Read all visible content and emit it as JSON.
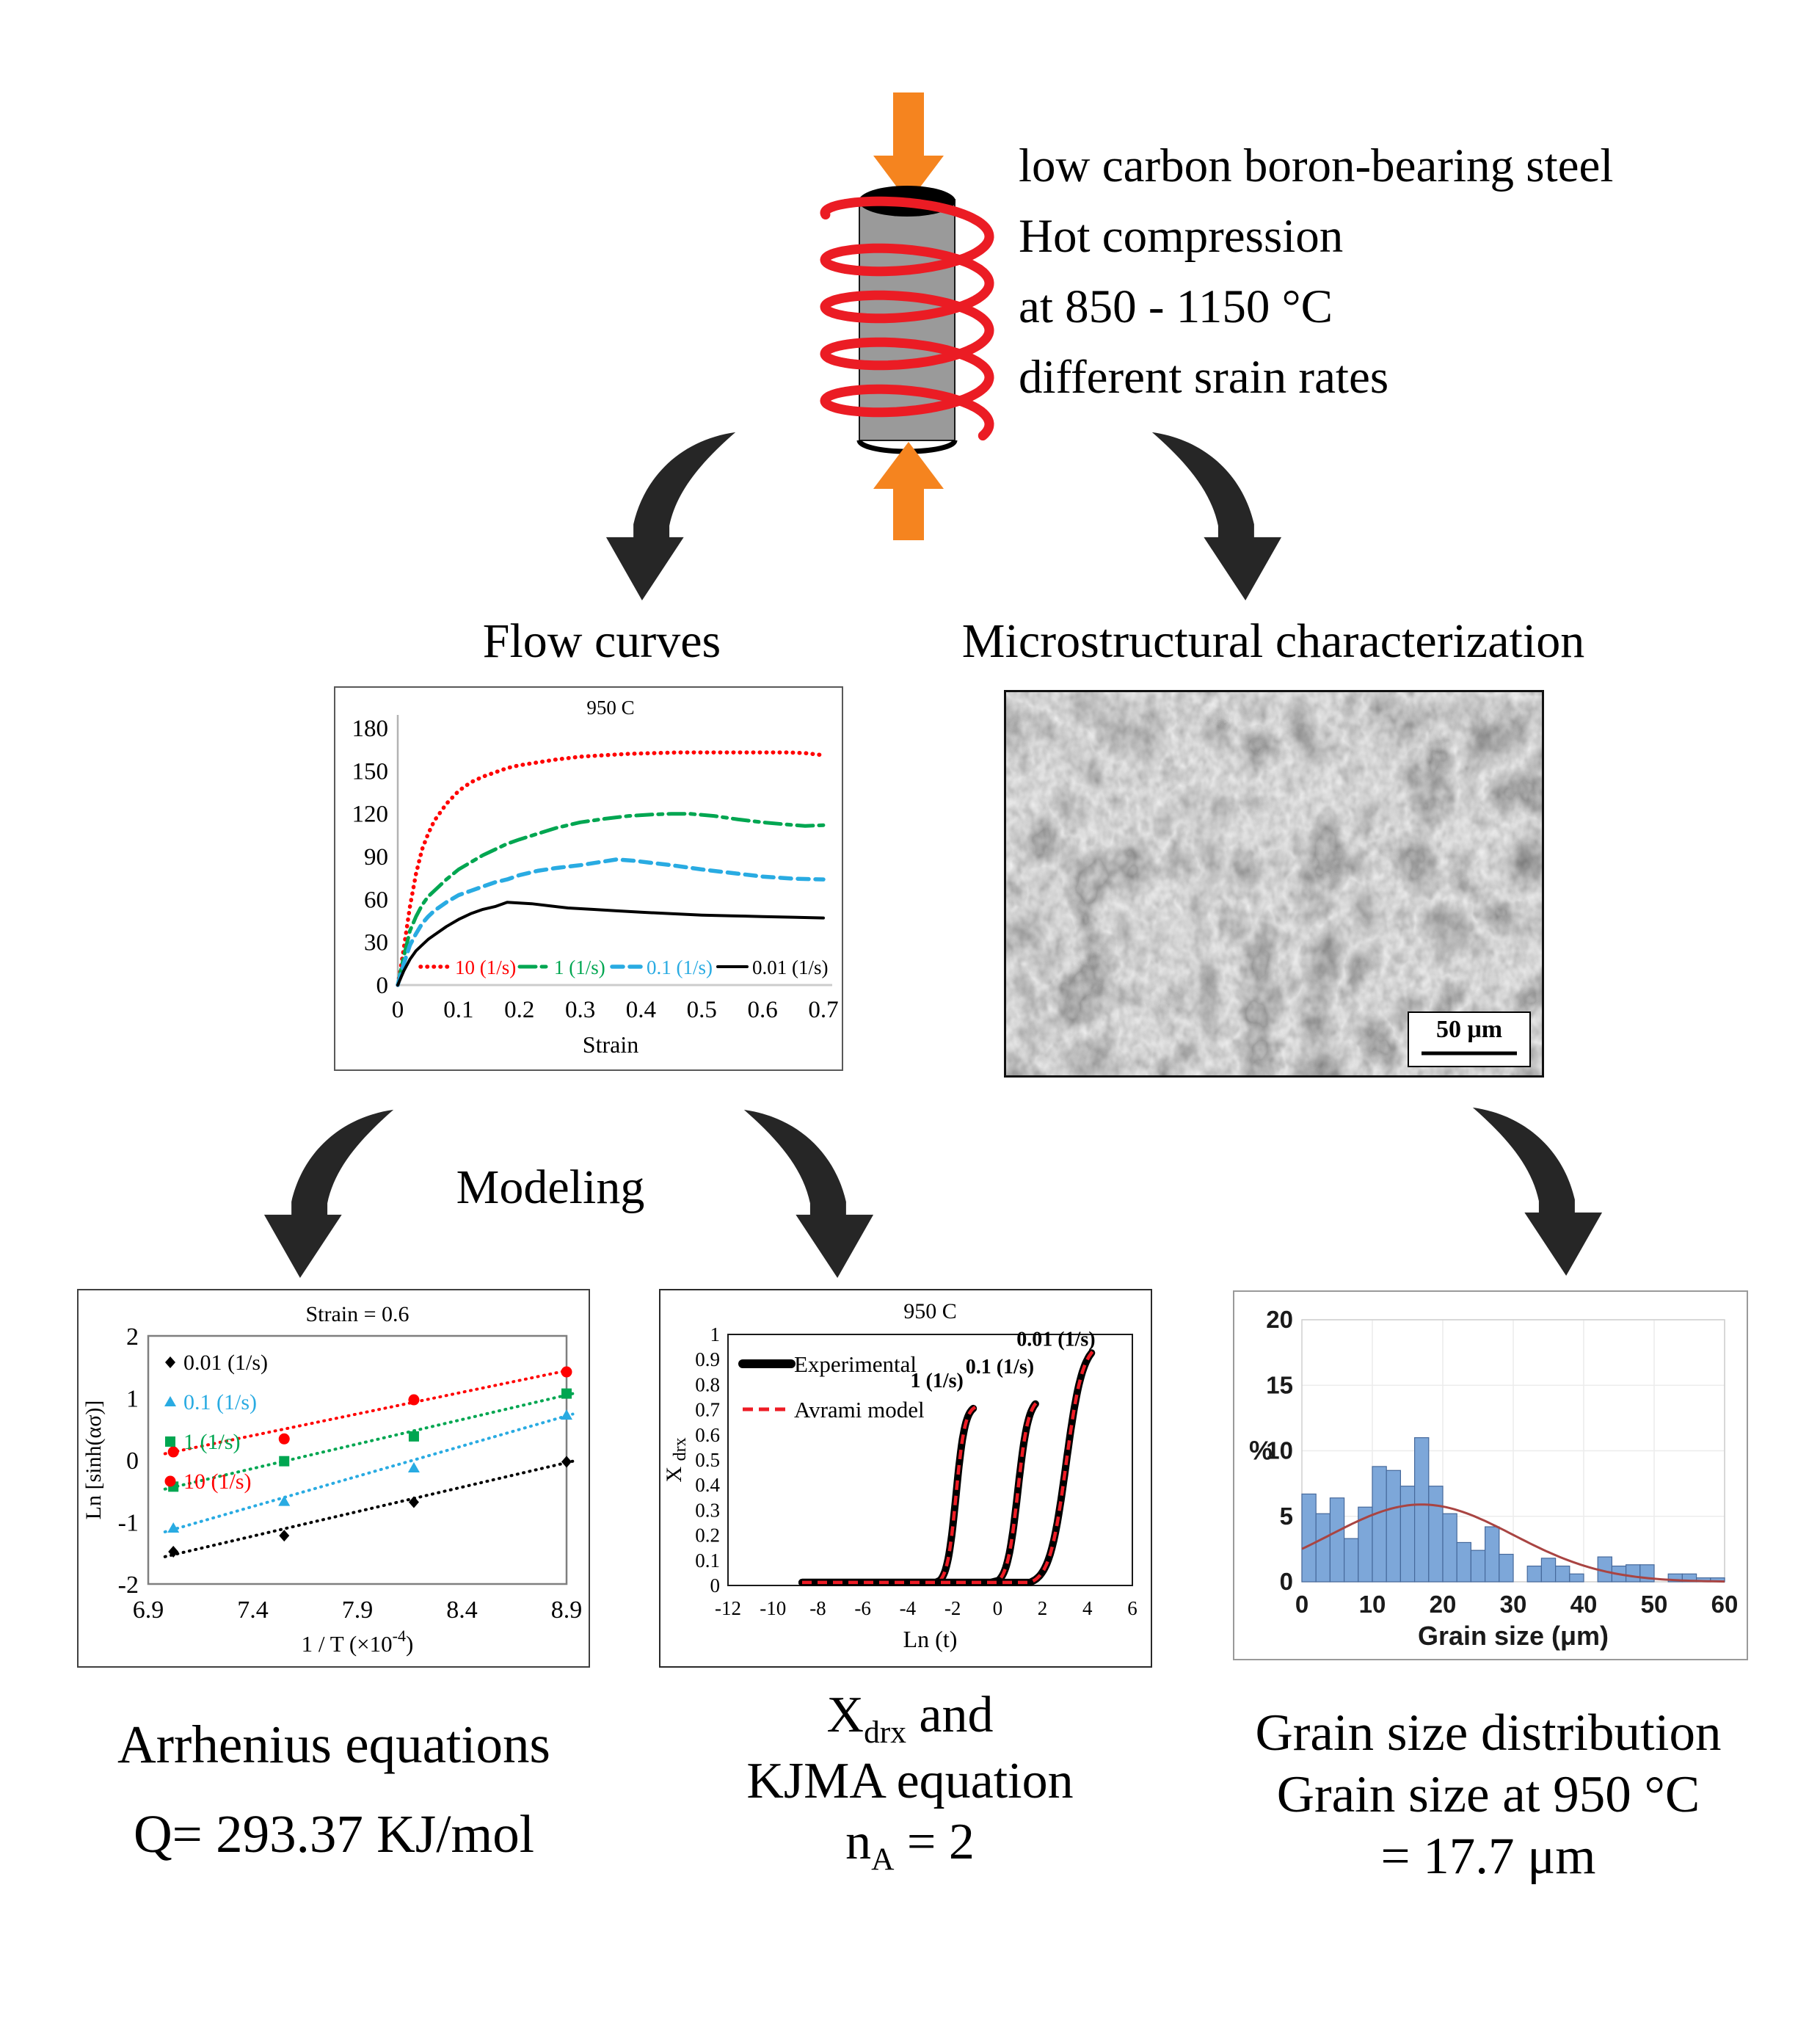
{
  "title_block": {
    "line1": "low carbon boron-bearing steel",
    "line2": "Hot compression",
    "line3": "at 850 - 1150 °C",
    "line4": "different srain rates"
  },
  "section_labels": {
    "flow_curves": "Flow curves",
    "microstructure": "Microstructural characterization",
    "modeling": "Modeling"
  },
  "micrograph": {
    "scale_bar_label": "50 μm"
  },
  "captions": {
    "left": {
      "line1": "Arrhenius equations",
      "line2": "Q= 293.37 KJ/mol"
    },
    "middle": {
      "x": "X",
      "x_sub": "drx",
      "and": " and",
      "line2": "KJMA equation",
      "n": "n",
      "n_sub": "A",
      "eq": " = 2"
    },
    "right": {
      "line1": "Grain size distribution",
      "line2": "Grain size at 950 °C",
      "line3": "= 17.7 μm"
    }
  },
  "colors": {
    "orange": "#F5841F",
    "coil_red": "#EB1C24",
    "arrow_dark": "#262626",
    "steel_gray": "#9A9A9A"
  },
  "chart_data": [
    {
      "id": "flow",
      "type": "line",
      "title": "950 C",
      "xlabel": "Strain",
      "xlim": [
        0,
        0.7
      ],
      "ylim": [
        0,
        180
      ],
      "xticks": [
        "0",
        "0.1",
        "0.2",
        "0.3",
        "0.4",
        "0.5",
        "0.6",
        "0.7"
      ],
      "yticks": [
        "0",
        "30",
        "60",
        "90",
        "120",
        "150",
        "180"
      ],
      "legend_position": "bottom-inside",
      "series": [
        {
          "name": "10 (1/s)",
          "color": "#FF0000",
          "dash": "dot",
          "points": [
            [
              0,
              0
            ],
            [
              0.005,
              12
            ],
            [
              0.01,
              26
            ],
            [
              0.02,
              55
            ],
            [
              0.03,
              78
            ],
            [
              0.04,
              95
            ],
            [
              0.05,
              106
            ],
            [
              0.06,
              115
            ],
            [
              0.08,
              127
            ],
            [
              0.1,
              136
            ],
            [
              0.12,
              142
            ],
            [
              0.14,
              146
            ],
            [
              0.16,
              149
            ],
            [
              0.18,
              152
            ],
            [
              0.2,
              154
            ],
            [
              0.23,
              156
            ],
            [
              0.26,
              158
            ],
            [
              0.3,
              160
            ],
            [
              0.34,
              161
            ],
            [
              0.38,
              162
            ],
            [
              0.42,
              162.5
            ],
            [
              0.46,
              163
            ],
            [
              0.5,
              163
            ],
            [
              0.55,
              163
            ],
            [
              0.6,
              163
            ],
            [
              0.64,
              163
            ],
            [
              0.67,
              162.5
            ],
            [
              0.7,
              161
            ]
          ]
        },
        {
          "name": "1 (1/s)",
          "color": "#00A651",
          "dash": "dashdot",
          "points": [
            [
              0,
              0
            ],
            [
              0.005,
              10
            ],
            [
              0.01,
              20
            ],
            [
              0.02,
              38
            ],
            [
              0.03,
              48
            ],
            [
              0.04,
              56
            ],
            [
              0.05,
              62
            ],
            [
              0.06,
              66
            ],
            [
              0.08,
              74
            ],
            [
              0.1,
              81
            ],
            [
              0.12,
              86
            ],
            [
              0.14,
              91
            ],
            [
              0.16,
              95
            ],
            [
              0.18,
              99
            ],
            [
              0.2,
              102
            ],
            [
              0.23,
              106
            ],
            [
              0.26,
              110
            ],
            [
              0.3,
              114
            ],
            [
              0.34,
              116.5
            ],
            [
              0.38,
              118.5
            ],
            [
              0.42,
              119.5
            ],
            [
              0.45,
              120
            ],
            [
              0.48,
              120
            ],
            [
              0.52,
              118.5
            ],
            [
              0.56,
              116
            ],
            [
              0.6,
              114
            ],
            [
              0.64,
              112.5
            ],
            [
              0.67,
              111.5
            ],
            [
              0.7,
              112
            ]
          ]
        },
        {
          "name": "0.1 (1/s)",
          "color": "#29ABE2",
          "dash": "dash",
          "points": [
            [
              0,
              0
            ],
            [
              0.005,
              8
            ],
            [
              0.01,
              15
            ],
            [
              0.02,
              28
            ],
            [
              0.03,
              36
            ],
            [
              0.04,
              43
            ],
            [
              0.05,
              48
            ],
            [
              0.06,
              52
            ],
            [
              0.08,
              58
            ],
            [
              0.1,
              63
            ],
            [
              0.12,
              66
            ],
            [
              0.14,
              69
            ],
            [
              0.16,
              72
            ],
            [
              0.18,
              74
            ],
            [
              0.2,
              77
            ],
            [
              0.23,
              80
            ],
            [
              0.26,
              82
            ],
            [
              0.3,
              84
            ],
            [
              0.33,
              86
            ],
            [
              0.36,
              88
            ],
            [
              0.39,
              87
            ],
            [
              0.42,
              85.5
            ],
            [
              0.45,
              84
            ],
            [
              0.5,
              81
            ],
            [
              0.55,
              78.5
            ],
            [
              0.6,
              76
            ],
            [
              0.65,
              74.5
            ],
            [
              0.7,
              74
            ]
          ]
        },
        {
          "name": "0.01 (1/s)",
          "color": "#000000",
          "dash": "solid",
          "points": [
            [
              0,
              0
            ],
            [
              0.005,
              5
            ],
            [
              0.01,
              10
            ],
            [
              0.02,
              18
            ],
            [
              0.03,
              24
            ],
            [
              0.04,
              28
            ],
            [
              0.05,
              32
            ],
            [
              0.06,
              35
            ],
            [
              0.08,
              41
            ],
            [
              0.1,
              46
            ],
            [
              0.12,
              50
            ],
            [
              0.14,
              53
            ],
            [
              0.16,
              55
            ],
            [
              0.18,
              58
            ],
            [
              0.2,
              57.5
            ],
            [
              0.22,
              57
            ],
            [
              0.25,
              55.5
            ],
            [
              0.28,
              54
            ],
            [
              0.32,
              53
            ],
            [
              0.36,
              52
            ],
            [
              0.4,
              51
            ],
            [
              0.45,
              50
            ],
            [
              0.5,
              49
            ],
            [
              0.55,
              48.5
            ],
            [
              0.6,
              48
            ],
            [
              0.65,
              47.5
            ],
            [
              0.7,
              47
            ]
          ]
        }
      ]
    },
    {
      "id": "arrhenius",
      "type": "scatter",
      "title": "Strain = 0.6",
      "xlabel_parts": [
        "1 / T (×10",
        "-4",
        ")"
      ],
      "ylabel": "Ln [sinh(ασ)]",
      "xlim": [
        6.9,
        8.9
      ],
      "ylim": [
        -2,
        2
      ],
      "xticks": [
        "6.9",
        "7.4",
        "7.9",
        "8.4",
        "8.9"
      ],
      "yticks": [
        "2",
        "1",
        "0",
        "-1",
        "-2"
      ],
      "series": [
        {
          "name": "0.01 (1/s)",
          "color": "#000000",
          "marker": "diamond",
          "points": [
            [
              7.02,
              -1.48
            ],
            [
              7.55,
              -1.22
            ],
            [
              8.17,
              -0.68
            ],
            [
              8.9,
              -0.03
            ]
          ],
          "trend": [
            [
              6.98,
              -1.56
            ],
            [
              8.93,
              -0.02
            ]
          ]
        },
        {
          "name": "0.1 (1/s)",
          "color": "#29ABE2",
          "marker": "triangle",
          "points": [
            [
              7.02,
              -1.1
            ],
            [
              7.55,
              -0.67
            ],
            [
              8.17,
              -0.13
            ],
            [
              8.9,
              0.72
            ]
          ],
          "trend": [
            [
              6.98,
              -1.16
            ],
            [
              8.93,
              0.74
            ]
          ]
        },
        {
          "name": "1 (1/s)",
          "color": "#00A651",
          "marker": "square",
          "points": [
            [
              7.02,
              -0.43
            ],
            [
              7.55,
              -0.02
            ],
            [
              8.17,
              0.38
            ],
            [
              8.9,
              1.07
            ]
          ],
          "trend": [
            [
              6.98,
              -0.47
            ],
            [
              8.93,
              1.07
            ]
          ]
        },
        {
          "name": "10 (1/s)",
          "color": "#FF0000",
          "marker": "circle",
          "points": [
            [
              7.02,
              0.13
            ],
            [
              7.55,
              0.34
            ],
            [
              8.17,
              0.97
            ],
            [
              8.9,
              1.42
            ]
          ],
          "trend": [
            [
              6.98,
              0.1
            ],
            [
              8.93,
              1.46
            ]
          ]
        }
      ]
    },
    {
      "id": "kjma",
      "type": "sigmoid",
      "title": "950 C",
      "xlabel": "Ln (t)",
      "ylabel_main": "X ",
      "ylabel_sub": "drx",
      "xlim": [
        -12,
        6
      ],
      "ylim": [
        0,
        1
      ],
      "flat_start": -8.7,
      "xticks": [
        "-12",
        "-10",
        "-8",
        "-6",
        "-4",
        "-2",
        "0",
        "2",
        "4",
        "6"
      ],
      "yticks": [
        "0",
        "0.1",
        "0.2",
        "0.3",
        "0.4",
        "0.5",
        "0.6",
        "0.7",
        "0.8",
        "0.9",
        "1"
      ],
      "legend": [
        {
          "label": "Experimental"
        },
        {
          "label": "Avrami model"
        }
      ],
      "model_color": "#EE1C25",
      "curves": [
        {
          "label": "1 (1/s)",
          "ymax": 0.72,
          "x0": -1.85,
          "k": 5.0,
          "x_end": -1.05,
          "label_at": [
            -2.7,
            0.79
          ]
        },
        {
          "label": "0.1 (1/s)",
          "ymax": 0.75,
          "x0": 0.9,
          "k": 4.2,
          "x_end": 1.72,
          "label_at": [
            0.1,
            0.845
          ]
        },
        {
          "label": "0.01 (1/s)",
          "ymax": 0.97,
          "x0": 3.05,
          "k": 2.7,
          "x_end": 4.2,
          "label_at": [
            2.6,
            0.955
          ]
        }
      ]
    },
    {
      "id": "hist",
      "type": "histogram",
      "xlabel": "Grain size (μm)",
      "ylabel": "%",
      "xlim": [
        0,
        60
      ],
      "ylim": [
        0,
        20
      ],
      "bin_width": 2,
      "xticks": [
        "0",
        "10",
        "20",
        "30",
        "40",
        "50",
        "60"
      ],
      "yticks": [
        "0",
        "5",
        "10",
        "15",
        "20"
      ],
      "values": [
        6.7,
        5.2,
        6.4,
        3.3,
        5.7,
        8.8,
        8.5,
        7.3,
        11,
        7.3,
        5.2,
        3,
        2.4,
        4.2,
        2.1,
        0,
        1.2,
        1.8,
        1.2,
        0.6,
        0,
        1.9,
        1.2,
        1.3,
        1.3,
        0,
        0.6,
        0.6,
        0.3,
        0.3
      ],
      "fit_curve": {
        "A": 5.9,
        "mu": 17,
        "sigma": 13
      },
      "bar_fill": "#7DA7D9",
      "bar_stroke": "#46699B",
      "curve_color": "#A94442",
      "grid_color": "#ECECEC",
      "tick_color": "#1a1a1a"
    }
  ]
}
